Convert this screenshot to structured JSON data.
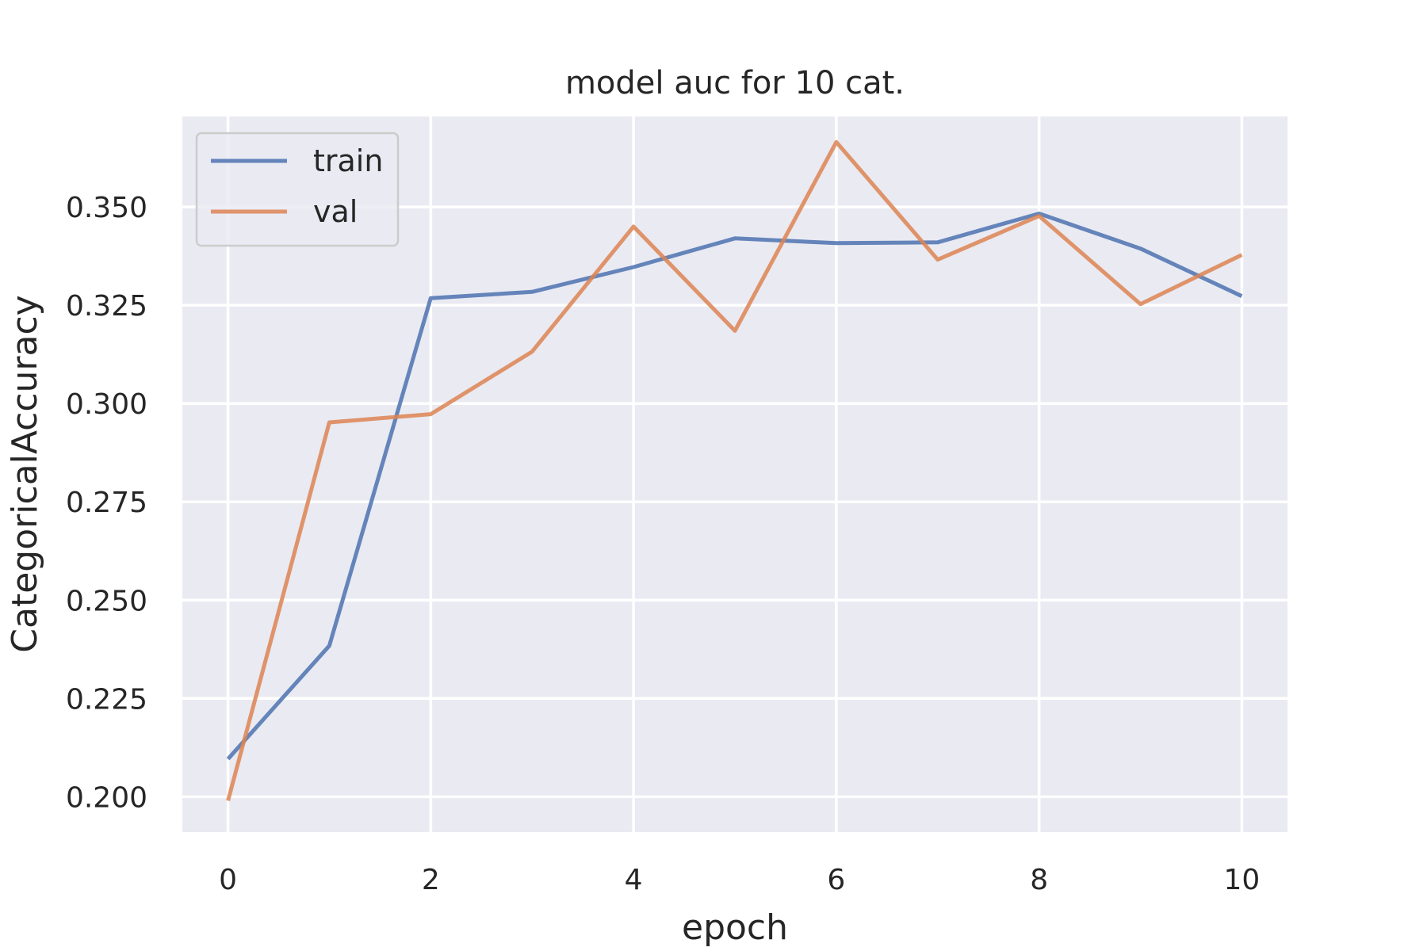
{
  "chart_data": {
    "type": "line",
    "title": "model auc for 10 cat.",
    "xlabel": "epoch",
    "ylabel": "CategoricalAccuracy",
    "x": [
      0,
      1,
      2,
      3,
      4,
      5,
      6,
      7,
      8,
      9,
      10
    ],
    "xlim": [
      -0.45,
      10.45
    ],
    "ylim": [
      0.191,
      0.373
    ],
    "xticks": [
      0,
      2,
      4,
      6,
      8,
      10
    ],
    "yticks": [
      0.2,
      0.225,
      0.25,
      0.275,
      0.3,
      0.325,
      0.35
    ],
    "ytick_labels": [
      "0.200",
      "0.225",
      "0.250",
      "0.275",
      "0.300",
      "0.325",
      "0.350"
    ],
    "grid": true,
    "legend_position": "top-left",
    "background_color": "#eaeaf2",
    "series": [
      {
        "name": "train",
        "color": "#4c72b0",
        "values": [
          0.2096,
          0.2384,
          0.3268,
          0.3284,
          0.3347,
          0.342,
          0.3408,
          0.341,
          0.3483,
          0.3394,
          0.3273
        ]
      },
      {
        "name": "val",
        "color": "#dd8452",
        "values": [
          0.199,
          0.2952,
          0.2973,
          0.3132,
          0.345,
          0.3185,
          0.3665,
          0.3366,
          0.3477,
          0.3253,
          0.3378
        ]
      }
    ]
  }
}
